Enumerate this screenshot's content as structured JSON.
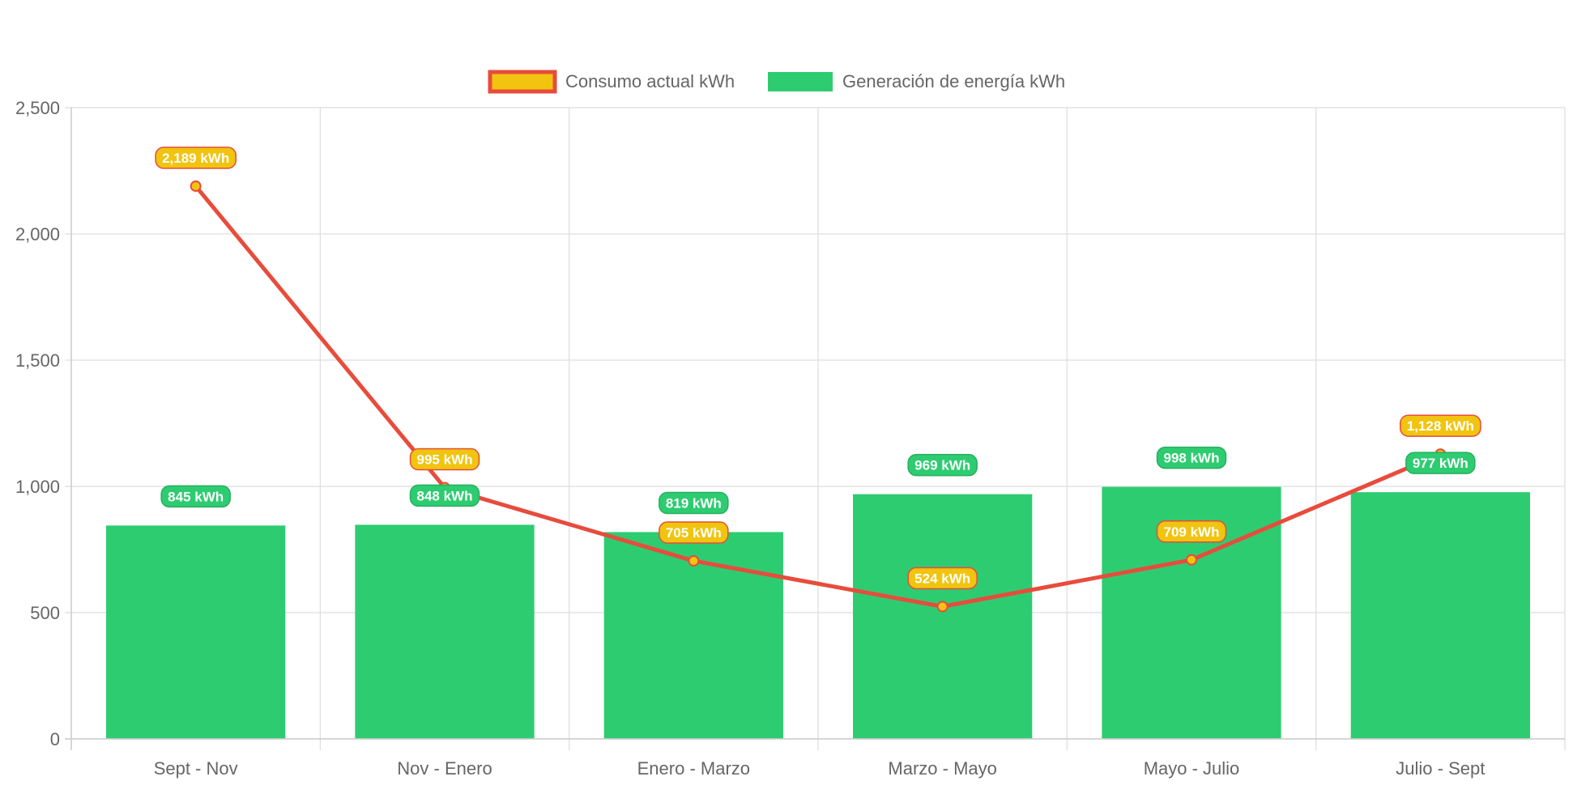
{
  "chart_data": {
    "type": "bar",
    "title": "",
    "xlabel": "",
    "ylabel": "",
    "categories": [
      "Sept - Nov",
      "Nov - Enero",
      "Enero - Marzo",
      "Marzo - Mayo",
      "Mayo - Julio",
      "Julio - Sept"
    ],
    "ylim": [
      0,
      2500
    ],
    "yticks": [
      0,
      500,
      1000,
      1500,
      2000,
      2500
    ],
    "ytick_labels": [
      "0",
      "500",
      "1,000",
      "1,500",
      "2,000",
      "2,500"
    ],
    "grid": true,
    "legend_position": "top-center",
    "series": [
      {
        "name": "Consumo actual kWh",
        "type": "line",
        "values": [
          2189,
          995,
          705,
          524,
          709,
          1128
        ],
        "labels": [
          "2,189 kWh",
          "995 kWh",
          "705 kWh",
          "524 kWh",
          "709 kWh",
          "1,128 kWh"
        ],
        "line_color": "#e74c3c",
        "fill_color": "#f1c40f"
      },
      {
        "name": "Generación de energía kWh",
        "type": "bar",
        "values": [
          845,
          848,
          819,
          969,
          998,
          977
        ],
        "labels": [
          "845 kWh",
          "848 kWh",
          "819 kWh",
          "969 kWh",
          "998 kWh",
          "977 kWh"
        ],
        "color": "#2ecc71",
        "border_color": "#27ae60"
      }
    ]
  }
}
